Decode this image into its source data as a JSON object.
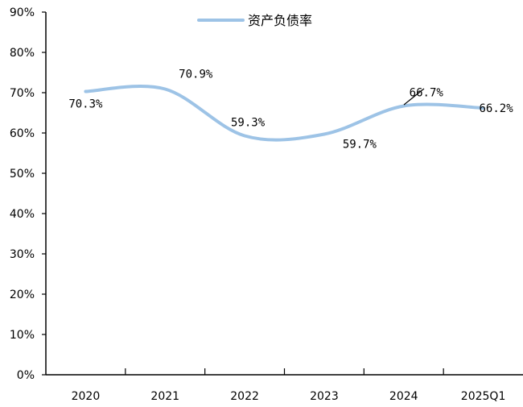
{
  "chart_data": {
    "type": "line",
    "categories": [
      "2020",
      "2021",
      "2022",
      "2023",
      "2024",
      "2025Q1"
    ],
    "series": [
      {
        "name": "资产负债率",
        "values": [
          70.3,
          70.9,
          59.3,
          59.7,
          66.7,
          66.2
        ],
        "labels": [
          "70.3%",
          "70.9%",
          "59.3%",
          "59.7%",
          "66.7%",
          "66.2%"
        ],
        "color": "#9dc3e6"
      }
    ],
    "yticks": [
      "0%",
      "10%",
      "20%",
      "30%",
      "40%",
      "50%",
      "60%",
      "70%",
      "80%",
      "90%"
    ],
    "ylim": [
      0,
      90
    ],
    "grid": false,
    "legend_position": "top-center",
    "smooth": true
  }
}
